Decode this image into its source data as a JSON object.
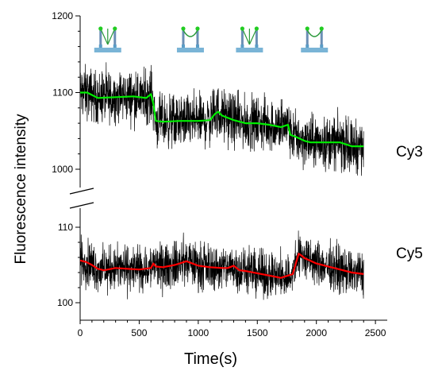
{
  "chart_data": {
    "type": "line",
    "xlabel": "Time(s)",
    "ylabel": "Fluorescence intensity",
    "xlim": [
      0,
      2600
    ],
    "x_ticks": [
      "0",
      "500",
      "1000",
      "1500",
      "2000",
      "2500"
    ],
    "grid": false,
    "axis_break": true,
    "panels": [
      {
        "name": "Cy3",
        "ylim": [
          950,
          1200
        ],
        "y_ticks": [
          "1000",
          "1100",
          "1200"
        ],
        "noise_amplitude": 25,
        "series": [
          {
            "color": "#00ee00",
            "x": [
              0,
              60,
              150,
              300,
              450,
              560,
              600,
              620,
              640,
              700,
              850,
              1000,
              1100,
              1140,
              1170,
              1200,
              1300,
              1400,
              1500,
              1600,
              1700,
              1760,
              1780,
              1830,
              1900,
              1950,
              2000,
              2200,
              2300,
              2400
            ],
            "y": [
              1100,
              1100,
              1093,
              1094,
              1095,
              1093,
              1098,
              1085,
              1063,
              1062,
              1063,
              1063,
              1064,
              1072,
              1075,
              1070,
              1064,
              1060,
              1060,
              1058,
              1055,
              1058,
              1045,
              1042,
              1037,
              1035,
              1035,
              1035,
              1030,
              1030
            ]
          }
        ],
        "tag": "Cy3"
      },
      {
        "name": "Cy5",
        "ylim": [
          99,
          115
        ],
        "y_ticks": [
          "100",
          "110"
        ],
        "noise_amplitude": 2.2,
        "series": [
          {
            "color": "#ff0000",
            "x": [
              0,
              50,
              100,
              150,
              200,
              300,
              400,
              500,
              600,
              620,
              640,
              700,
              800,
              900,
              1000,
              1100,
              1200,
              1250,
              1300,
              1350,
              1400,
              1500,
              1600,
              1700,
              1800,
              1850,
              1870,
              1900,
              2000,
              2100,
              2200,
              2300,
              2400
            ],
            "y": [
              105.6,
              105.4,
              105.0,
              104.5,
              104.3,
              104.6,
              104.5,
              104.4,
              104.6,
              105.2,
              104.8,
              104.7,
              105.0,
              105.5,
              104.9,
              104.7,
              104.6,
              104.6,
              104.9,
              104.3,
              104.2,
              103.9,
              103.6,
              103.3,
              103.8,
              106.5,
              106.3,
              105.9,
              105.2,
              104.8,
              104.4,
              104.0,
              103.8
            ]
          }
        ],
        "tag": "Cy5"
      }
    ],
    "schematics": [
      {
        "time": 200,
        "state": "straight"
      },
      {
        "time": 900,
        "state": "bent"
      },
      {
        "time": 1400,
        "state": "straight"
      },
      {
        "time": 1950,
        "state": "bent"
      }
    ]
  }
}
